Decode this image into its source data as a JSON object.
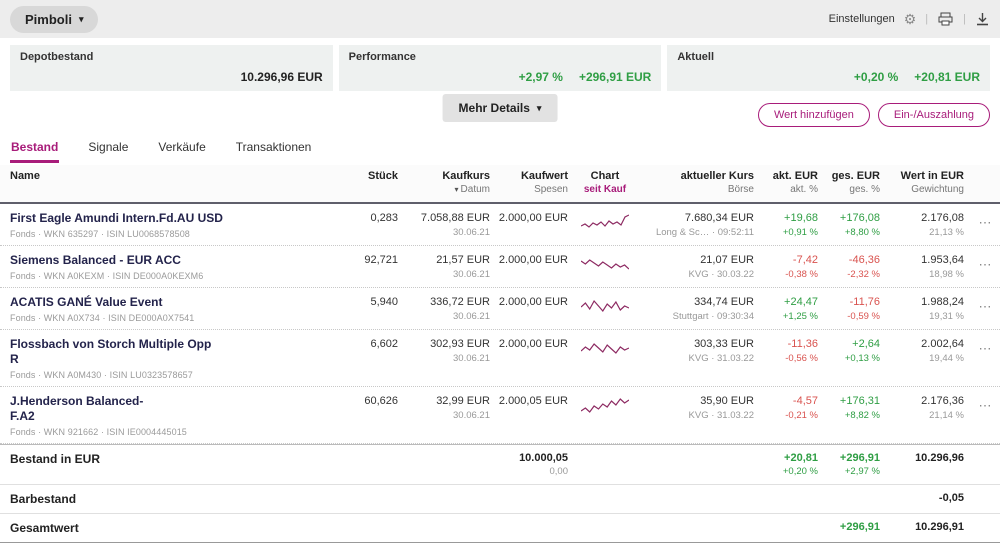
{
  "colors": {
    "accent": "#a81c7a",
    "positive": "#2f9e44",
    "negative": "#d9534f",
    "spark": "#8d2a62"
  },
  "icons": {
    "chevron_down": "▾",
    "gear": "⚙",
    "divider": "|",
    "dots": "⋯"
  },
  "topbar": {
    "account": "Pimboli",
    "settings": "Einstellungen"
  },
  "cards": {
    "depot": {
      "label": "Depotbestand",
      "value": "10.296,96 EUR"
    },
    "performance": {
      "label": "Performance",
      "pct": "+2,97 %",
      "value": "+296,91 EUR"
    },
    "aktuell": {
      "label": "Aktuell",
      "pct": "+0,20 %",
      "value": "+20,81 EUR"
    }
  },
  "actions": {
    "more": "Mehr Details",
    "add": "Wert hinzufügen",
    "payinout": "Ein-/Auszahlung"
  },
  "tabs": [
    {
      "label": "Bestand",
      "active": true
    },
    {
      "label": "Signale",
      "active": false
    },
    {
      "label": "Verkäufe",
      "active": false
    },
    {
      "label": "Transaktionen",
      "active": false
    }
  ],
  "table": {
    "columns": {
      "name": {
        "label": "Name"
      },
      "stueck": {
        "label": "Stück"
      },
      "kaufkurs": {
        "label": "Kaufkurs",
        "sub": "Datum"
      },
      "kaufwert": {
        "label": "Kaufwert",
        "sub": "Spesen"
      },
      "chart": {
        "label": "Chart",
        "sub": "seit Kauf"
      },
      "kurs": {
        "label": "aktueller Kurs",
        "sub": "Börse"
      },
      "akt": {
        "label": "akt. EUR",
        "sub": "akt. %"
      },
      "ges": {
        "label": "ges. EUR",
        "sub": "ges. %"
      },
      "wert": {
        "label": "Wert in EUR",
        "sub": "Gewichtung"
      }
    },
    "rows": [
      {
        "name": "First Eagle Amundi Intern.Fd.AU USD",
        "name2": "",
        "meta": "Fonds · WKN 635297 · ISIN LU0068578508",
        "stueck": "0,283",
        "kaufkurs": "7.058,88 EUR",
        "datum": "30.06.21",
        "kaufwert": "2.000,00 EUR",
        "kurs": "7.680,34 EUR",
        "boerse": "Long & Sc… · 09:52:11",
        "akt_eur": "+19,68",
        "akt_pct": "+0,91 %",
        "ges_eur": "+176,08",
        "ges_pct": "+8,80 %",
        "wert": "2.176,08",
        "gewichtung": "21,13 %",
        "spark": [
          13,
          11,
          14,
          10,
          12,
          9,
          13,
          8,
          11,
          9,
          12,
          4,
          2
        ]
      },
      {
        "name": "Siemens Balanced - EUR ACC",
        "name2": "",
        "meta": "Fonds · WKN A0KEXM · ISIN DE000A0KEXM6",
        "stueck": "92,721",
        "kaufkurs": "21,57 EUR",
        "datum": "30.06.21",
        "kaufwert": "2.000,00 EUR",
        "kurs": "21,07 EUR",
        "boerse": "KVG · 30.03.22",
        "akt_eur": "-7,42",
        "akt_pct": "-0,38 %",
        "ges_eur": "-46,36",
        "ges_pct": "-2,32 %",
        "wert": "1.953,64",
        "gewichtung": "18,98 %",
        "spark": [
          6,
          9,
          5,
          8,
          11,
          7,
          10,
          13,
          9,
          12,
          10,
          14
        ]
      },
      {
        "name": "ACATIS GANÉ Value Event",
        "name2": "",
        "meta": "Fonds · WKN A0X734 · ISIN DE000A0X7541",
        "stueck": "5,940",
        "kaufkurs": "336,72 EUR",
        "datum": "30.06.21",
        "kaufwert": "2.000,00 EUR",
        "kurs": "334,74 EUR",
        "boerse": "Stuttgart · 09:30:34",
        "akt_eur": "+24,47",
        "akt_pct": "+1,25 %",
        "ges_eur": "-11,76",
        "ges_pct": "-0,59 %",
        "wert": "1.988,24",
        "gewichtung": "19,31 %",
        "spark": [
          10,
          6,
          12,
          4,
          9,
          14,
          7,
          11,
          5,
          13,
          9,
          11
        ]
      },
      {
        "name": "Flossbach von Storch Multiple Opp",
        "name2": "R",
        "meta": "Fonds · WKN A0M430 · ISIN LU0323578657",
        "stueck": "6,602",
        "kaufkurs": "302,93 EUR",
        "datum": "30.06.21",
        "kaufwert": "2.000,00 EUR",
        "kurs": "303,33 EUR",
        "boerse": "KVG · 31.03.22",
        "akt_eur": "-11,36",
        "akt_pct": "-0,56 %",
        "ges_eur": "+2,64",
        "ges_pct": "+0,13 %",
        "wert": "2.002,64",
        "gewichtung": "19,44 %",
        "spark": [
          12,
          8,
          11,
          5,
          9,
          13,
          6,
          10,
          14,
          8,
          11,
          9
        ]
      },
      {
        "name": "J.Henderson Balanced-",
        "name2": "F.A2",
        "meta": "Fonds · WKN 921662 · ISIN IE0004445015",
        "stueck": "60,626",
        "kaufkurs": "32,99 EUR",
        "datum": "30.06.21",
        "kaufwert": "2.000,05 EUR",
        "kurs": "35,90 EUR",
        "boerse": "KVG · 31.03.22",
        "akt_eur": "-4,57",
        "akt_pct": "-0,21 %",
        "ges_eur": "+176,31",
        "ges_pct": "+8,82 %",
        "wert": "2.176,36",
        "gewichtung": "21,14 %",
        "spark": [
          15,
          12,
          16,
          10,
          13,
          8,
          11,
          5,
          9,
          3,
          7,
          4
        ]
      }
    ],
    "totals": {
      "bestand": {
        "label": "Bestand in EUR",
        "kaufwert": "10.000,05",
        "spesen": "0,00",
        "akt_eur": "+20,81",
        "akt_pct": "+0,20 %",
        "ges_eur": "+296,91",
        "ges_pct": "+2,97 %",
        "wert": "10.296,96"
      },
      "barbestand": {
        "label": "Barbestand",
        "wert": "-0,05"
      },
      "gesamtwert": {
        "label": "Gesamtwert",
        "ges_eur": "+296,91",
        "wert": "10.296,91"
      }
    }
  }
}
